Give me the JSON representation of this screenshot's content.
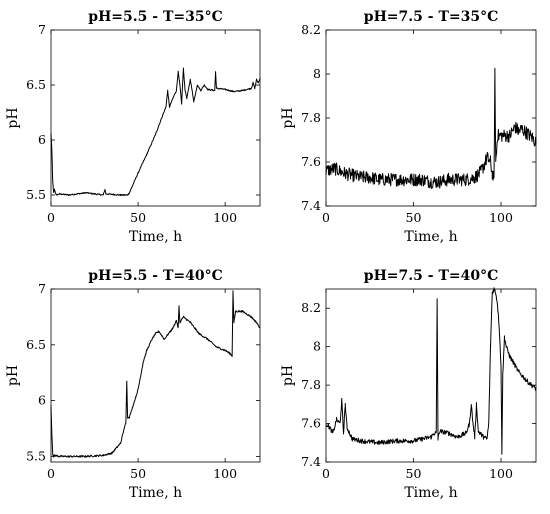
{
  "chart_data": [
    {
      "type": "line",
      "title": "pH=5.5 - T=35°C",
      "xlabel": "Time, h",
      "ylabel": "pH",
      "xlim": [
        0,
        120
      ],
      "ylim": [
        5.4,
        7.0
      ],
      "xticks": [
        0,
        50,
        100
      ],
      "xtick_labels": [
        "0",
        "50",
        "100"
      ],
      "yticks": [
        5.5,
        6.0,
        6.5,
        7.0
      ],
      "ytick_labels": [
        "5.5",
        "6",
        "6.5",
        "7"
      ],
      "grid": false,
      "noise": 0.006,
      "series": [
        {
          "x": [
            0,
            0.5,
            1,
            1.5,
            2,
            3,
            5,
            10,
            20,
            30,
            31,
            31.5,
            40,
            44,
            45,
            50,
            55,
            60,
            64,
            66,
            67,
            68,
            70,
            72,
            73,
            74,
            75,
            76,
            77,
            78,
            80,
            82,
            84,
            86,
            88,
            90,
            94,
            94.5,
            95,
            100,
            105,
            110,
            115,
            116,
            117,
            118,
            119,
            120
          ],
          "y": [
            6.06,
            5.9,
            5.62,
            5.52,
            5.55,
            5.5,
            5.51,
            5.5,
            5.52,
            5.5,
            5.55,
            5.51,
            5.5,
            5.5,
            5.52,
            5.7,
            5.87,
            6.05,
            6.22,
            6.3,
            6.45,
            6.3,
            6.38,
            6.45,
            6.62,
            6.5,
            6.33,
            6.65,
            6.45,
            6.38,
            6.55,
            6.35,
            6.5,
            6.45,
            6.5,
            6.46,
            6.45,
            6.62,
            6.47,
            6.46,
            6.44,
            6.45,
            6.47,
            6.52,
            6.47,
            6.55,
            6.52,
            6.56
          ]
        }
      ]
    },
    {
      "type": "line",
      "title": "pH=7.5 - T=35°C",
      "xlabel": "Time, h",
      "ylabel": "pH",
      "xlim": [
        0,
        120
      ],
      "ylim": [
        7.4,
        8.2
      ],
      "xticks": [
        0,
        50,
        100
      ],
      "xtick_labels": [
        "0",
        "50",
        "100"
      ],
      "yticks": [
        7.4,
        7.6,
        7.8,
        8.0,
        8.2
      ],
      "ytick_labels": [
        "7.4",
        "7.6",
        "7.8",
        "8",
        "8.2"
      ],
      "grid": false,
      "noise": 0.03,
      "series": [
        {
          "x": [
            0,
            5,
            10,
            15,
            20,
            25,
            30,
            35,
            40,
            45,
            50,
            55,
            60,
            65,
            70,
            75,
            80,
            85,
            88,
            90,
            92,
            94,
            95,
            96,
            96.5,
            97,
            97.5,
            98,
            100,
            105,
            108,
            110,
            112,
            115,
            118,
            120
          ],
          "y": [
            7.56,
            7.57,
            7.55,
            7.54,
            7.53,
            7.53,
            7.52,
            7.52,
            7.52,
            7.52,
            7.52,
            7.52,
            7.51,
            7.51,
            7.52,
            7.52,
            7.52,
            7.53,
            7.55,
            7.58,
            7.62,
            7.6,
            7.55,
            7.52,
            8.0,
            7.6,
            7.65,
            7.72,
            7.72,
            7.72,
            7.76,
            7.74,
            7.75,
            7.73,
            7.71,
            7.69
          ]
        }
      ]
    },
    {
      "type": "line",
      "title": "pH=5.5 - T=40°C",
      "xlabel": "Time, h",
      "ylabel": "pH",
      "xlim": [
        0,
        120
      ],
      "ylim": [
        5.45,
        7.0
      ],
      "xticks": [
        0,
        50,
        100
      ],
      "xtick_labels": [
        "0",
        "50",
        "100"
      ],
      "yticks": [
        5.5,
        6.0,
        6.5,
        7.0
      ],
      "ytick_labels": [
        "5.5",
        "6",
        "6.5",
        "7"
      ],
      "grid": false,
      "noise": 0.008,
      "series": [
        {
          "x": [
            0,
            0.5,
            1,
            1.5,
            2,
            5,
            10,
            20,
            30,
            35,
            40,
            42,
            43,
            43.5,
            44,
            45,
            47,
            50,
            53,
            55,
            58,
            60,
            62,
            65,
            70,
            72,
            73,
            73.5,
            74,
            76,
            80,
            85,
            90,
            95,
            100,
            103,
            104,
            104.5,
            105,
            106,
            110,
            115,
            118,
            120
          ],
          "y": [
            5.95,
            5.7,
            5.52,
            5.5,
            5.51,
            5.5,
            5.5,
            5.5,
            5.51,
            5.53,
            5.62,
            5.75,
            5.8,
            6.18,
            5.85,
            5.85,
            5.95,
            6.1,
            6.35,
            6.45,
            6.55,
            6.6,
            6.62,
            6.55,
            6.65,
            6.72,
            6.65,
            6.85,
            6.7,
            6.75,
            6.7,
            6.6,
            6.55,
            6.48,
            6.45,
            6.42,
            6.4,
            6.98,
            6.7,
            6.8,
            6.8,
            6.75,
            6.7,
            6.65
          ]
        }
      ]
    },
    {
      "type": "line",
      "title": "pH=7.5 - T=40°C",
      "xlabel": "Time, h",
      "ylabel": "pH",
      "xlim": [
        0,
        120
      ],
      "ylim": [
        7.4,
        8.3
      ],
      "xticks": [
        0,
        50,
        100
      ],
      "xtick_labels": [
        "0",
        "50",
        "100"
      ],
      "yticks": [
        7.4,
        7.6,
        7.8,
        8.0,
        8.2
      ],
      "ytick_labels": [
        "7.4",
        "7.6",
        "7.8",
        "8",
        "8.2"
      ],
      "grid": false,
      "noise": 0.012,
      "series": [
        {
          "x": [
            0,
            2,
            4,
            6,
            8,
            9,
            10,
            11,
            12,
            15,
            20,
            30,
            40,
            50,
            55,
            60,
            62,
            63,
            63.5,
            64,
            65,
            70,
            75,
            80,
            82,
            83,
            84,
            85,
            86,
            87,
            88,
            90,
            92,
            93,
            94,
            95,
            96,
            97,
            98,
            99,
            100,
            100.5,
            101,
            102,
            103,
            105,
            110,
            115,
            120
          ],
          "y": [
            7.6,
            7.58,
            7.55,
            7.62,
            7.6,
            7.72,
            7.55,
            7.7,
            7.58,
            7.52,
            7.51,
            7.5,
            7.51,
            7.51,
            7.52,
            7.53,
            7.55,
            7.55,
            8.25,
            7.52,
            7.56,
            7.55,
            7.53,
            7.55,
            7.6,
            7.7,
            7.6,
            7.53,
            7.7,
            7.56,
            7.55,
            7.53,
            7.52,
            7.6,
            8.0,
            8.28,
            8.3,
            8.28,
            8.22,
            8.1,
            7.9,
            7.45,
            7.85,
            8.05,
            8.0,
            7.95,
            7.87,
            7.82,
            7.78
          ]
        }
      ]
    }
  ]
}
